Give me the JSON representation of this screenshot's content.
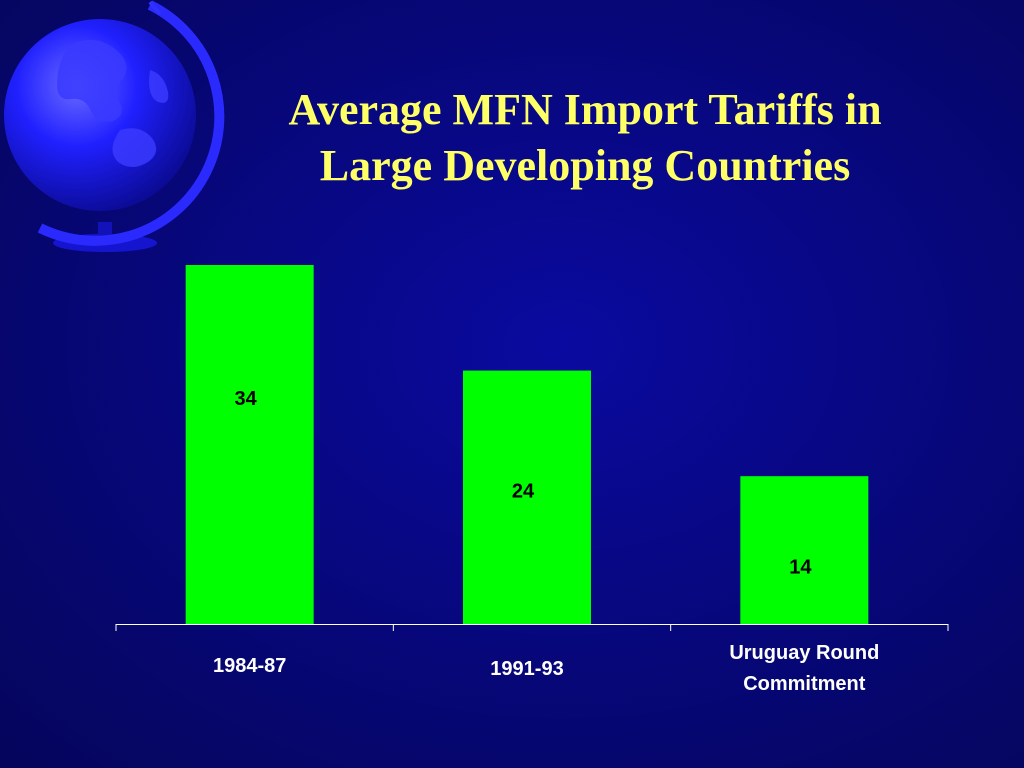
{
  "slide": {
    "title_line1": "Average MFN Import Tariffs in",
    "title_line2": "Large Developing Countries"
  },
  "colors": {
    "background": "#06066e",
    "title": "#ffff66",
    "bar": "#00ff00",
    "axis": "#ffffff",
    "globe": "#1a1aff"
  },
  "chart_data": {
    "type": "bar",
    "categories": [
      "1984-87",
      "1991-93",
      "Uruguay Round Commitment"
    ],
    "category_label_lines": [
      [
        "1984-87"
      ],
      [
        "1991-93"
      ],
      [
        "Uruguay Round",
        "Commitment"
      ]
    ],
    "values": [
      34,
      24,
      14
    ],
    "data_labels": [
      "34",
      "24",
      "14"
    ],
    "title": "Average MFN Import Tariffs in Large Developing Countries",
    "xlabel": "",
    "ylabel": "",
    "ylim": [
      0,
      34
    ],
    "grid": false,
    "legend": "none"
  }
}
